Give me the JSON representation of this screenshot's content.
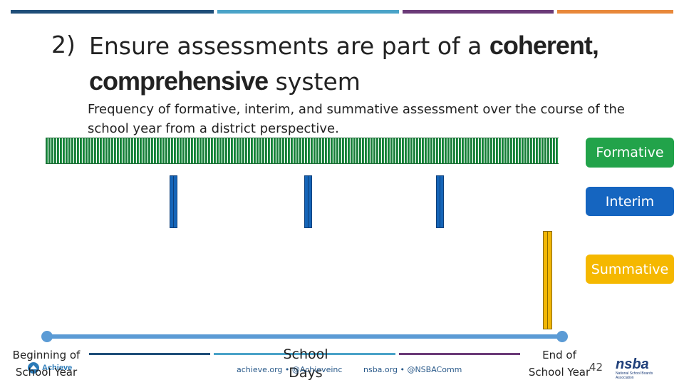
{
  "slide": {
    "title_number": "2)",
    "title_line1_plain": "Ensure assessments are part of a ",
    "title_line1_bold": "coherent,",
    "title_line2_bold": "comprehensive",
    "title_line2_plain": " system",
    "subtitle": "Frequency of formative, interim, and summative assessment over the course of the school year from a district perspective."
  },
  "legend": {
    "formative": "Formative",
    "interim": "Interim",
    "summative": "Summative"
  },
  "colors": {
    "formative": "#22a34a",
    "interim": "#1565c0",
    "summative": "#f5b800",
    "timeline": "#5b9bd5"
  },
  "timeline": {
    "start_label_1": "Beginning of",
    "start_label_2": "School Year",
    "mid_label_1": "School",
    "mid_label_2": "Days",
    "end_label_1": "End of",
    "end_label_2": "School Year"
  },
  "footer": {
    "page_number": "42",
    "achieve_text": "achieve.org • @Achieveinc",
    "nsba_text": "nsba.org • @NSBAComm",
    "achieve_logo": "Achieve",
    "nsba_logo": "nsba",
    "nsba_logo_sub": "National School Boards Association"
  }
}
